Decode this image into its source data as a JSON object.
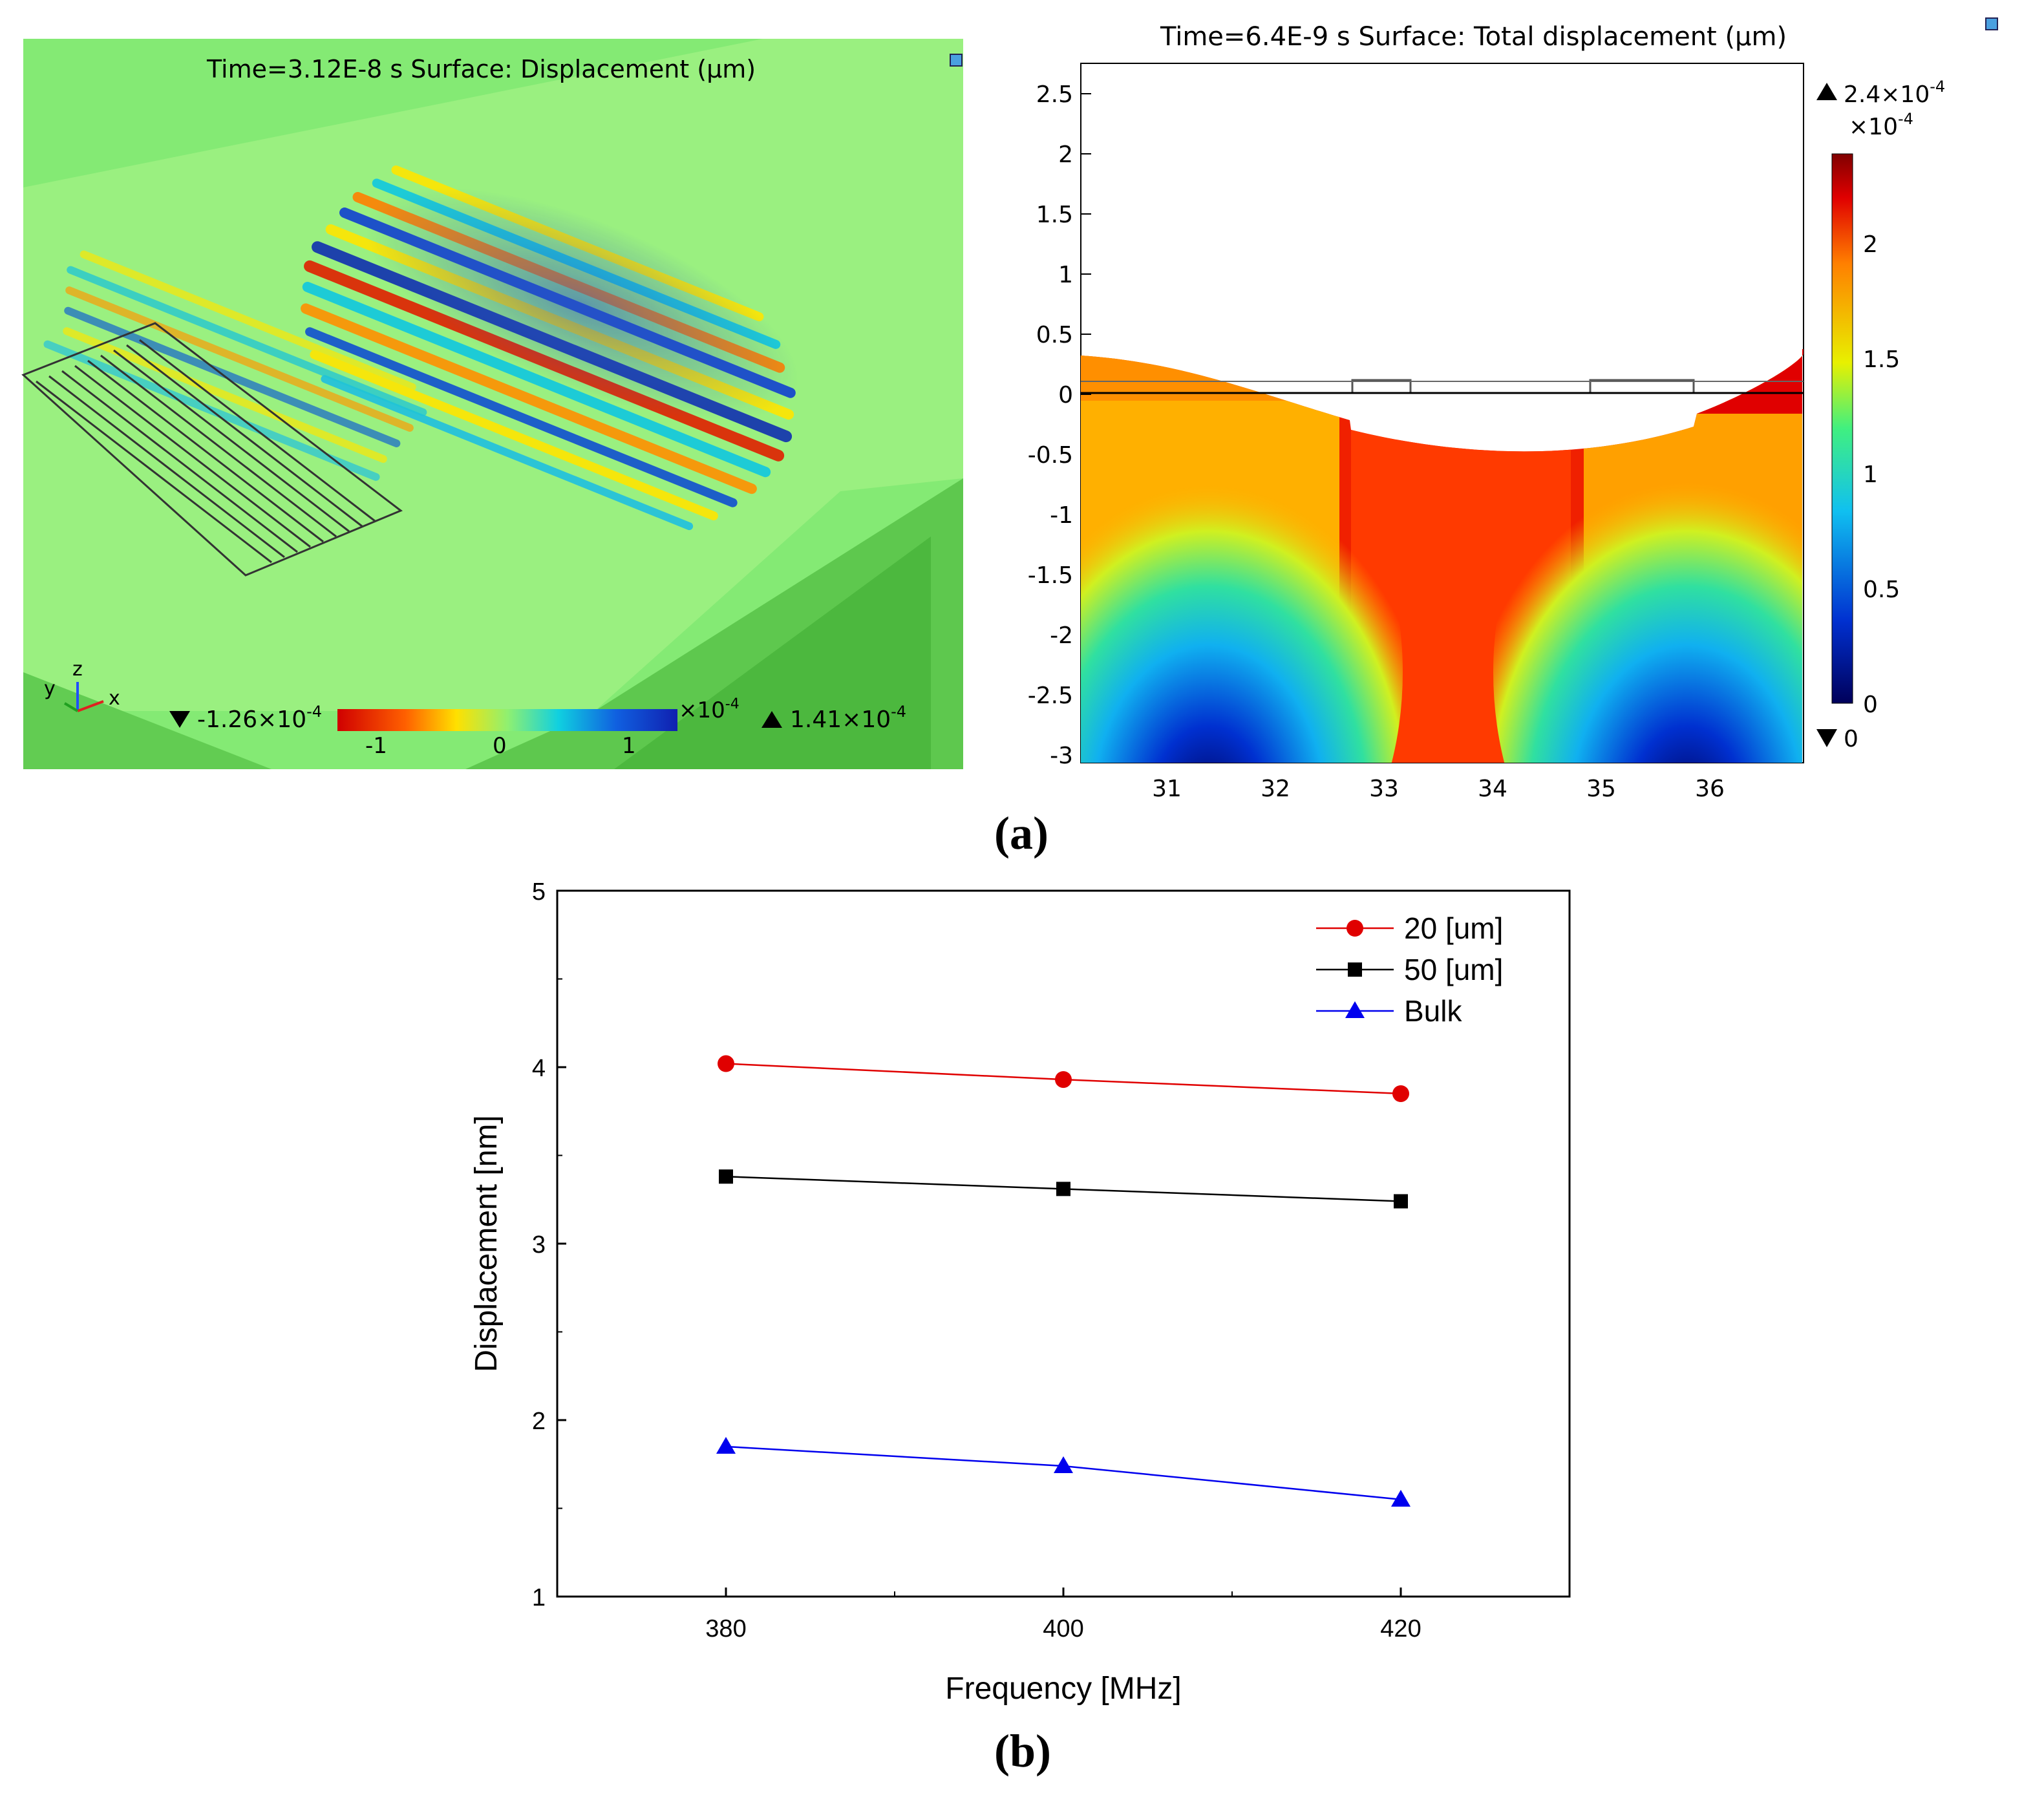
{
  "panel_labels": {
    "a": "a",
    "b": "b"
  },
  "colors": {
    "red": "#d00000",
    "yellow": "#ffe000",
    "green": "#90f070",
    "cyan": "#10d0e0",
    "blue": "#1030d0",
    "navy": "#00005a",
    "darkred": "#800000"
  },
  "icons": {
    "corner": "info-square-icon",
    "max_marker": "triangle-up-icon",
    "min_marker": "triangle-down-icon",
    "axes": "xyz-axes-icon"
  },
  "left_plot": {
    "title": "Time=3.12E-8 s   Surface: Displacement (µm)",
    "axis_labels": {
      "x": "x",
      "y": "y",
      "z": "z"
    },
    "min_label": "-1.26×10",
    "min_exp": "-4",
    "max_label": "1.41×10",
    "max_exp": "-4",
    "colorbar_ticks": [
      "-1",
      "0",
      "1"
    ],
    "colorbar_multiplier": "×10",
    "colorbar_multiplier_exp": "-4"
  },
  "right_plot": {
    "title": "Time=6.4E-9 s   Surface: Total displacement (µm)",
    "y_ticks": [
      "2.5",
      "2",
      "1.5",
      "1",
      "0.5",
      "0",
      "-0.5",
      "-1",
      "-1.5",
      "-2",
      "-2.5",
      "-3"
    ],
    "x_ticks": [
      "31",
      "32",
      "33",
      "34",
      "35",
      "36"
    ],
    "max_label": "2.4×10",
    "max_exp": "-4",
    "multiplier": "×10",
    "multiplier_exp": "-4",
    "colorbar_ticks": [
      "2",
      "1.5",
      "1",
      "0.5",
      "0"
    ],
    "min_label": "0"
  },
  "chart_data": {
    "type": "line",
    "title": "",
    "xlabel": "Frequency [MHz]",
    "ylabel": "Displacement [nm]",
    "x": [
      380,
      400,
      420
    ],
    "xlim": [
      370,
      430
    ],
    "ylim": [
      1,
      5
    ],
    "x_ticks": [
      380,
      400,
      420
    ],
    "y_ticks": [
      1,
      2,
      3,
      4,
      5
    ],
    "legend_position": "top-right",
    "series": [
      {
        "name": "20 [um]",
        "values": [
          4.02,
          3.93,
          3.85
        ],
        "color": "#e00000",
        "marker": "circle"
      },
      {
        "name": "50 [um]",
        "values": [
          3.38,
          3.31,
          3.24
        ],
        "color": "#000000",
        "marker": "square"
      },
      {
        "name": "Bulk",
        "values": [
          1.85,
          1.74,
          1.55
        ],
        "color": "#0000ee",
        "marker": "triangle"
      }
    ]
  }
}
